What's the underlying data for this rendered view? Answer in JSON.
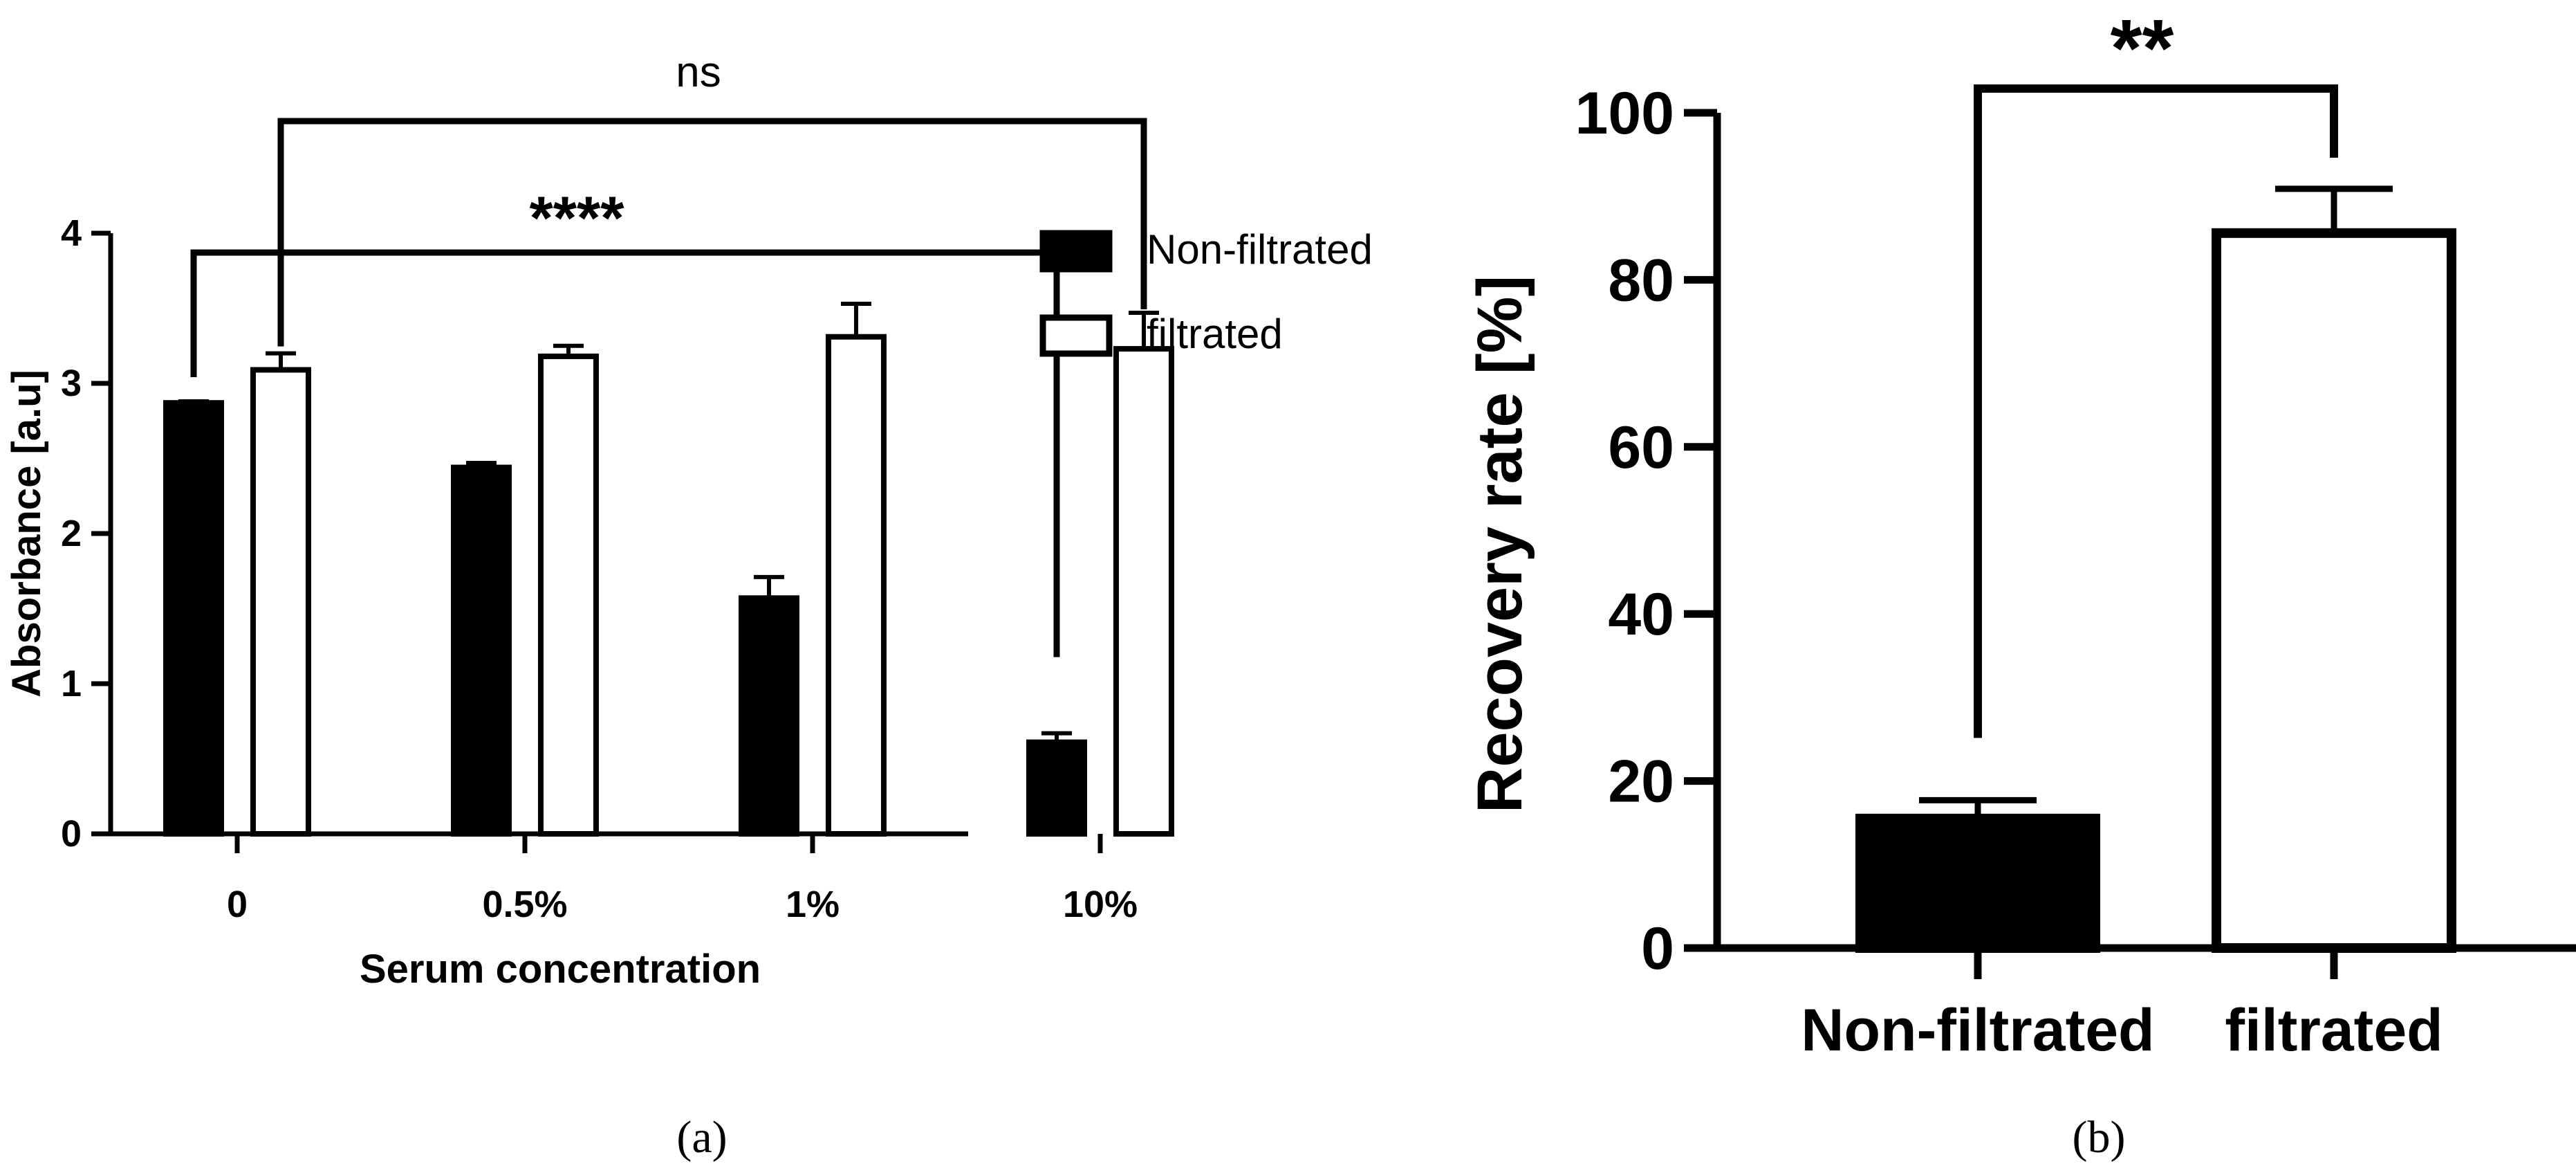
{
  "chart_data": [
    {
      "type": "bar",
      "panel_label": "(a)",
      "title": "",
      "xlabel": "Serum concentration",
      "ylabel": "Absorbance [a.u]",
      "categories": [
        "0",
        "0.5%",
        "1%",
        "10%"
      ],
      "ylim": [
        0,
        4
      ],
      "yticks": [
        "0",
        "1",
        "2",
        "3",
        "4"
      ],
      "series": [
        {
          "name": "Non-filtrated",
          "fill": "#000000",
          "values": [
            2.87,
            2.44,
            1.57,
            0.61
          ],
          "errors": [
            0.01,
            0.03,
            0.14,
            0.06
          ]
        },
        {
          "name": "filtrated",
          "fill": "#ffffff",
          "values": [
            3.09,
            3.18,
            3.31,
            3.23
          ],
          "errors": [
            0.11,
            0.07,
            0.22,
            0.24
          ]
        }
      ],
      "legend": {
        "position": "right",
        "entries": [
          "Non-filtrated",
          "filtrated"
        ]
      },
      "annotations": [
        {
          "text": "****",
          "from": "0 Non-filtrated",
          "to": "10% Non-filtrated"
        },
        {
          "text": "ns",
          "from": "0 filtrated",
          "to": "10% filtrated"
        }
      ]
    },
    {
      "type": "bar",
      "panel_label": "(b)",
      "title": "",
      "xlabel": "",
      "ylabel": "Recovery rate [%]",
      "categories": [
        "Non-filtrated",
        "filtrated"
      ],
      "ylim": [
        0,
        100
      ],
      "yticks": [
        "0",
        "20",
        "40",
        "60",
        "80",
        "100"
      ],
      "series": [
        {
          "name": "Recovery rate",
          "values": [
            15.5,
            85.6
          ],
          "errors": [
            2.2,
            5.3
          ],
          "fills": [
            "#000000",
            "#ffffff"
          ]
        }
      ],
      "annotations": [
        {
          "text": "**",
          "from": "Non-filtrated",
          "to": "filtrated"
        }
      ]
    }
  ]
}
